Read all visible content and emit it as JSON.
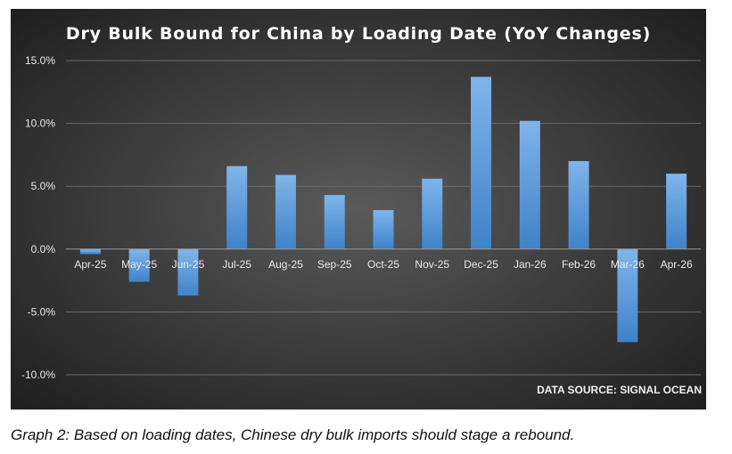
{
  "chart_data": {
    "type": "bar",
    "title": "Dry Bulk Bound for China by Loading Date (YoY Changes)",
    "source_note": "DATA SOURCE: SIGNAL OCEAN",
    "xlabel": "",
    "ylabel": "",
    "categories": [
      "Apr-25",
      "May-25",
      "Jun-25",
      "Jul-25",
      "Aug-25",
      "Sep-25",
      "Oct-25",
      "Nov-25",
      "Dec-25",
      "Jan-26",
      "Feb-26",
      "Mar-26",
      "Apr-26"
    ],
    "values": [
      -0.4,
      -2.6,
      -3.7,
      6.6,
      5.9,
      4.3,
      3.1,
      5.6,
      13.7,
      10.2,
      7.0,
      -7.4,
      6.0
    ],
    "ylim": [
      -10,
      15
    ],
    "yticks": [
      15,
      10,
      5,
      0,
      -5,
      -10
    ],
    "ytick_labels": [
      "15.0%",
      "10.0%",
      "5.0%",
      "0.0%",
      "-5.0%",
      "-10.0%"
    ],
    "grid": true,
    "legend": "none",
    "colors": {
      "bar_top": "#7fb5ea",
      "bar_bottom": "#3f82c9",
      "background_center": "#5a5a5a",
      "background_edge": "#1f1f1f",
      "text": "#e8e8e8",
      "gridline": "#6a6a6a"
    }
  },
  "caption": "Graph 2: Based on loading dates, Chinese dry bulk imports should stage a rebound."
}
